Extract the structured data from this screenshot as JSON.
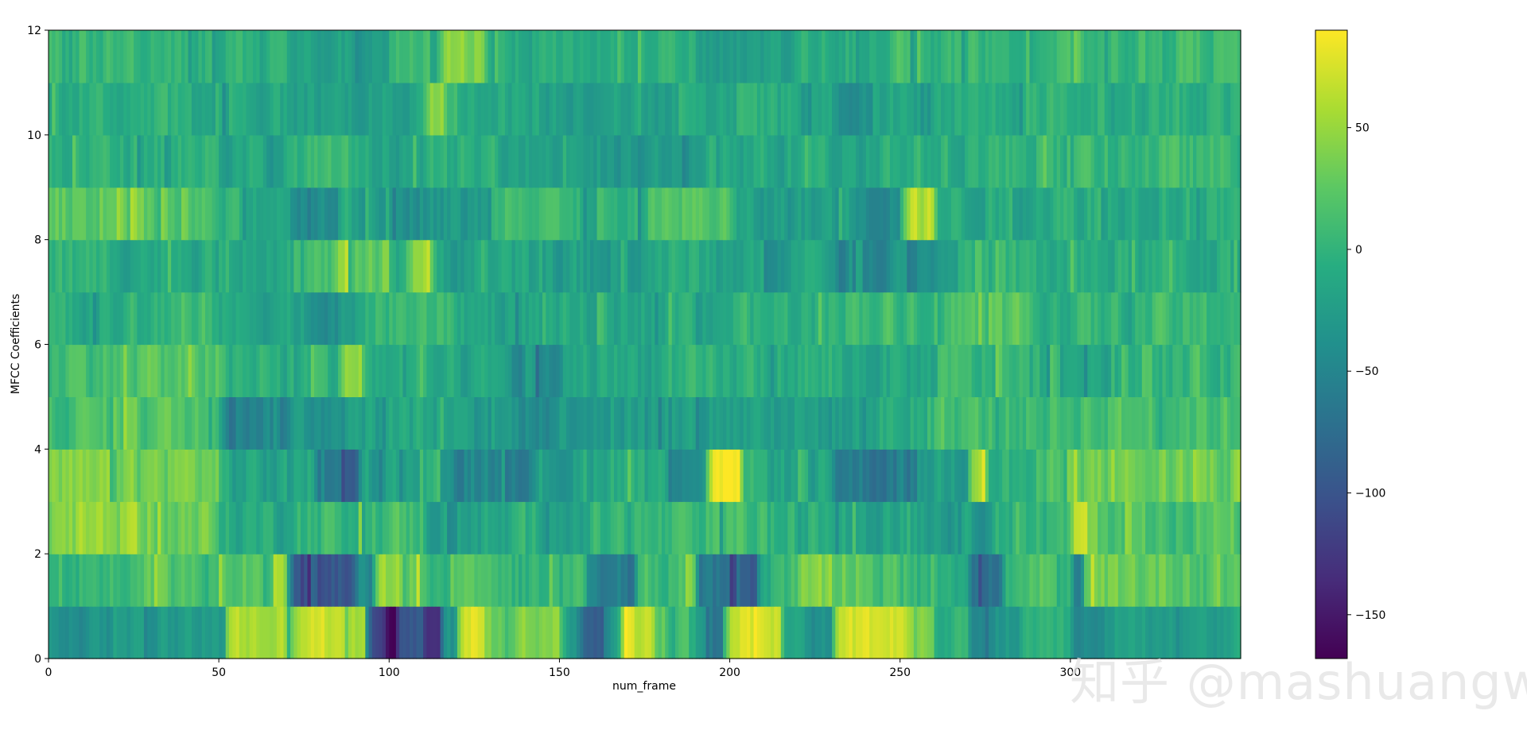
{
  "chart_data": {
    "type": "heatmap",
    "title": "",
    "xlabel": "num_frame",
    "ylabel": "MFCC Coefficients",
    "xlim": [
      0,
      350
    ],
    "ylim": [
      0,
      12
    ],
    "xticks": [
      0,
      50,
      100,
      150,
      200,
      250,
      300
    ],
    "yticks": [
      0,
      2,
      4,
      6,
      8,
      10,
      12
    ],
    "n_frames": 350,
    "n_coefficients": 12,
    "colormap": "viridis",
    "colorbar": {
      "range": [
        -168,
        90
      ],
      "ticks": [
        {
          "value": 50,
          "label": "50"
        },
        {
          "value": 0,
          "label": "0"
        },
        {
          "value": -50,
          "label": "−50"
        },
        {
          "value": -100,
          "label": "−100"
        },
        {
          "value": -150,
          "label": "−150"
        }
      ]
    },
    "row_profiles": [
      {
        "coefficient": 0,
        "base": -35,
        "var": 20,
        "segments": [
          [
            0,
            18,
            -40
          ],
          [
            18,
            52,
            -28
          ],
          [
            52,
            56,
            75
          ],
          [
            56,
            70,
            55
          ],
          [
            71,
            84,
            70
          ],
          [
            84,
            93,
            55
          ],
          [
            93,
            99,
            -130
          ],
          [
            99,
            102,
            -165
          ],
          [
            102,
            110,
            -90
          ],
          [
            110,
            115,
            -140
          ],
          [
            115,
            120,
            -20
          ],
          [
            120,
            128,
            78
          ],
          [
            128,
            140,
            30
          ],
          [
            140,
            150,
            40
          ],
          [
            150,
            153,
            -20
          ],
          [
            155,
            163,
            -85
          ],
          [
            163,
            168,
            -30
          ],
          [
            168,
            172,
            90
          ],
          [
            172,
            178,
            65
          ],
          [
            178,
            190,
            5
          ],
          [
            193,
            198,
            -50
          ],
          [
            198,
            208,
            75
          ],
          [
            208,
            215,
            60
          ],
          [
            215,
            222,
            -20
          ],
          [
            222,
            230,
            -40
          ],
          [
            230,
            252,
            70
          ],
          [
            252,
            260,
            35
          ],
          [
            260,
            270,
            -5
          ],
          [
            270,
            276,
            -60
          ],
          [
            276,
            285,
            -30
          ],
          [
            285,
            300,
            -10
          ],
          [
            300,
            310,
            -55
          ],
          [
            310,
            350,
            -20
          ]
        ]
      },
      {
        "coefficient": 1,
        "base": 5,
        "var": 28,
        "segments": [
          [
            0,
            20,
            5
          ],
          [
            20,
            50,
            15
          ],
          [
            50,
            70,
            30
          ],
          [
            70,
            80,
            -110
          ],
          [
            80,
            90,
            -100
          ],
          [
            90,
            95,
            -40
          ],
          [
            95,
            110,
            45
          ],
          [
            110,
            118,
            -5
          ],
          [
            118,
            128,
            40
          ],
          [
            128,
            145,
            -5
          ],
          [
            145,
            160,
            0
          ],
          [
            158,
            172,
            -55
          ],
          [
            172,
            190,
            15
          ],
          [
            190,
            200,
            -75
          ],
          [
            200,
            208,
            -90
          ],
          [
            208,
            220,
            10
          ],
          [
            220,
            240,
            35
          ],
          [
            240,
            260,
            15
          ],
          [
            260,
            270,
            0
          ],
          [
            270,
            280,
            -70
          ],
          [
            280,
            295,
            10
          ],
          [
            295,
            305,
            -10
          ],
          [
            300,
            303,
            -60
          ],
          [
            305,
            335,
            30
          ],
          [
            335,
            350,
            25
          ]
        ]
      },
      {
        "coefficient": 2,
        "base": 15,
        "var": 28,
        "segments": [
          [
            0,
            30,
            45
          ],
          [
            30,
            50,
            30
          ],
          [
            50,
            70,
            -10
          ],
          [
            70,
            90,
            5
          ],
          [
            90,
            110,
            10
          ],
          [
            110,
            135,
            -20
          ],
          [
            135,
            160,
            -10
          ],
          [
            160,
            190,
            0
          ],
          [
            190,
            210,
            10
          ],
          [
            210,
            230,
            -5
          ],
          [
            230,
            260,
            -15
          ],
          [
            260,
            275,
            -25
          ],
          [
            275,
            300,
            0
          ],
          [
            300,
            305,
            70
          ],
          [
            305,
            350,
            20
          ]
        ]
      },
      {
        "coefficient": 3,
        "base": 15,
        "var": 28,
        "segments": [
          [
            0,
            50,
            35
          ],
          [
            50,
            70,
            -20
          ],
          [
            70,
            78,
            -10
          ],
          [
            78,
            92,
            -75
          ],
          [
            92,
            115,
            -20
          ],
          [
            115,
            145,
            -45
          ],
          [
            145,
            160,
            -25
          ],
          [
            160,
            180,
            -5
          ],
          [
            180,
            193,
            -30
          ],
          [
            193,
            203,
            85
          ],
          [
            203,
            215,
            -10
          ],
          [
            215,
            230,
            -20
          ],
          [
            230,
            255,
            -60
          ],
          [
            255,
            270,
            -20
          ],
          [
            270,
            275,
            75
          ],
          [
            275,
            290,
            -5
          ],
          [
            290,
            300,
            10
          ],
          [
            300,
            350,
            30
          ]
        ]
      },
      {
        "coefficient": 4,
        "base": 0,
        "var": 26,
        "segments": [
          [
            0,
            20,
            15
          ],
          [
            20,
            50,
            20
          ],
          [
            50,
            70,
            -45
          ],
          [
            70,
            90,
            -30
          ],
          [
            90,
            120,
            -15
          ],
          [
            120,
            150,
            -35
          ],
          [
            150,
            175,
            -25
          ],
          [
            175,
            200,
            -20
          ],
          [
            200,
            220,
            -20
          ],
          [
            220,
            240,
            -25
          ],
          [
            240,
            260,
            -10
          ],
          [
            260,
            280,
            10
          ],
          [
            280,
            300,
            10
          ],
          [
            300,
            350,
            15
          ]
        ]
      },
      {
        "coefficient": 5,
        "base": 0,
        "var": 26,
        "segments": [
          [
            0,
            20,
            15
          ],
          [
            20,
            50,
            20
          ],
          [
            50,
            70,
            -10
          ],
          [
            70,
            85,
            -5
          ],
          [
            85,
            92,
            45
          ],
          [
            92,
            110,
            -10
          ],
          [
            110,
            135,
            -20
          ],
          [
            135,
            150,
            -45
          ],
          [
            150,
            175,
            -15
          ],
          [
            175,
            200,
            -10
          ],
          [
            200,
            230,
            -5
          ],
          [
            230,
            260,
            -15
          ],
          [
            260,
            290,
            0
          ],
          [
            290,
            320,
            -10
          ],
          [
            320,
            350,
            5
          ]
        ]
      },
      {
        "coefficient": 6,
        "base": -5,
        "var": 24,
        "segments": [
          [
            0,
            30,
            -10
          ],
          [
            30,
            50,
            0
          ],
          [
            50,
            75,
            -15
          ],
          [
            75,
            90,
            -35
          ],
          [
            90,
            120,
            5
          ],
          [
            120,
            140,
            -15
          ],
          [
            140,
            170,
            -15
          ],
          [
            170,
            200,
            -10
          ],
          [
            200,
            230,
            -5
          ],
          [
            230,
            260,
            10
          ],
          [
            260,
            290,
            15
          ],
          [
            290,
            320,
            0
          ],
          [
            320,
            350,
            5
          ]
        ]
      },
      {
        "coefficient": 7,
        "base": 0,
        "var": 26,
        "segments": [
          [
            0,
            20,
            -5
          ],
          [
            20,
            50,
            -10
          ],
          [
            50,
            75,
            -5
          ],
          [
            75,
            84,
            10
          ],
          [
            84,
            88,
            60
          ],
          [
            88,
            100,
            20
          ],
          [
            100,
            105,
            -5
          ],
          [
            105,
            112,
            55
          ],
          [
            112,
            140,
            -20
          ],
          [
            140,
            175,
            -25
          ],
          [
            175,
            200,
            -10
          ],
          [
            200,
            230,
            -20
          ],
          [
            230,
            260,
            -35
          ],
          [
            260,
            290,
            -5
          ],
          [
            290,
            320,
            -10
          ],
          [
            320,
            350,
            -10
          ]
        ]
      },
      {
        "coefficient": 8,
        "base": 0,
        "var": 26,
        "segments": [
          [
            0,
            30,
            25
          ],
          [
            30,
            50,
            10
          ],
          [
            50,
            70,
            -10
          ],
          [
            70,
            85,
            -35
          ],
          [
            85,
            100,
            -20
          ],
          [
            100,
            130,
            -30
          ],
          [
            130,
            150,
            20
          ],
          [
            150,
            175,
            -10
          ],
          [
            175,
            200,
            20
          ],
          [
            200,
            240,
            -25
          ],
          [
            240,
            250,
            -40
          ],
          [
            250,
            260,
            60
          ],
          [
            260,
            280,
            -10
          ],
          [
            280,
            300,
            -5
          ],
          [
            300,
            350,
            -5
          ]
        ]
      },
      {
        "coefficient": 9,
        "base": -5,
        "var": 24,
        "segments": [
          [
            0,
            30,
            -5
          ],
          [
            30,
            50,
            0
          ],
          [
            50,
            70,
            -20
          ],
          [
            70,
            90,
            0
          ],
          [
            90,
            110,
            -15
          ],
          [
            110,
            140,
            -10
          ],
          [
            140,
            160,
            -20
          ],
          [
            160,
            175,
            -35
          ],
          [
            175,
            190,
            -30
          ],
          [
            190,
            210,
            -10
          ],
          [
            210,
            240,
            -15
          ],
          [
            240,
            270,
            -5
          ],
          [
            270,
            300,
            0
          ],
          [
            300,
            350,
            5
          ]
        ]
      },
      {
        "coefficient": 10,
        "base": -10,
        "var": 22,
        "segments": [
          [
            0,
            40,
            -5
          ],
          [
            40,
            70,
            -15
          ],
          [
            70,
            110,
            -20
          ],
          [
            110,
            116,
            45
          ],
          [
            116,
            140,
            -10
          ],
          [
            140,
            175,
            -20
          ],
          [
            175,
            200,
            -20
          ],
          [
            200,
            230,
            -10
          ],
          [
            230,
            245,
            -35
          ],
          [
            245,
            270,
            -15
          ],
          [
            270,
            300,
            -10
          ],
          [
            300,
            350,
            -5
          ]
        ]
      },
      {
        "coefficient": 11,
        "base": 0,
        "var": 22,
        "segments": [
          [
            0,
            40,
            5
          ],
          [
            40,
            70,
            0
          ],
          [
            70,
            100,
            -20
          ],
          [
            100,
            115,
            5
          ],
          [
            115,
            128,
            45
          ],
          [
            128,
            160,
            -10
          ],
          [
            160,
            190,
            -5
          ],
          [
            190,
            205,
            -30
          ],
          [
            205,
            220,
            -20
          ],
          [
            220,
            240,
            -5
          ],
          [
            240,
            280,
            0
          ],
          [
            280,
            320,
            5
          ],
          [
            320,
            350,
            10
          ]
        ]
      }
    ]
  },
  "watermark": {
    "text": "知乎 @mashuangwe"
  }
}
